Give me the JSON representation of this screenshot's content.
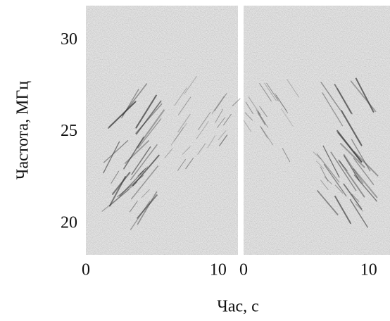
{
  "chart_data": {
    "type": "spectrogram",
    "ylabel": "Частота, МГц",
    "xlabel": "Час, с",
    "ylim": [
      18.3,
      31.9
    ],
    "yticks": [
      20,
      25,
      30
    ],
    "panels": [
      {
        "xlim": [
          0,
          11.5
        ],
        "xticks": [
          0,
          10
        ]
      },
      {
        "xlim": [
          0,
          11.7
        ],
        "xticks": [
          0,
          10
        ]
      }
    ]
  }
}
